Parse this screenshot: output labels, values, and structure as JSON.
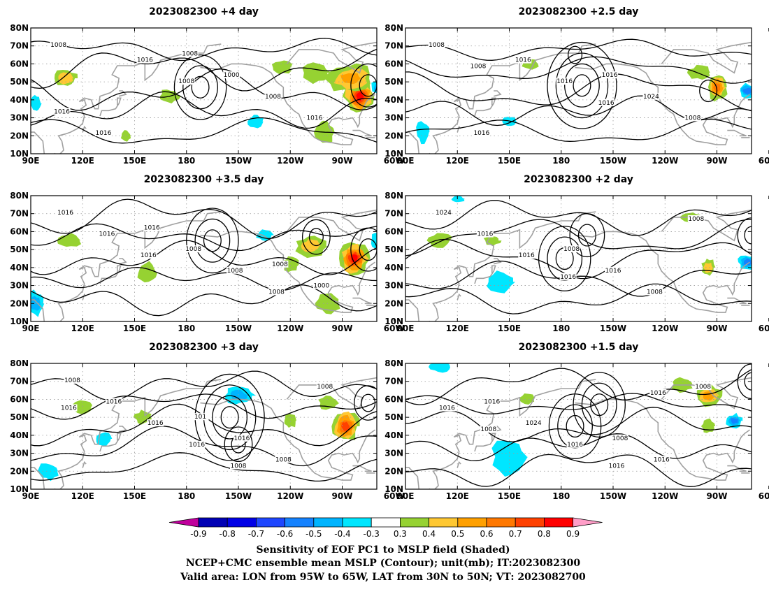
{
  "chart_data": {
    "type": "map",
    "panels": [
      {
        "title": "2023082300  +4 day",
        "contour_labels": [
          "1008",
          "1008",
          "1016",
          "1016",
          "1008",
          "1016",
          "1000",
          "1016",
          "1008"
        ],
        "highs": [
          [
            -172,
            47,
            [
              0.5,
              1,
              1.5
            ]
          ],
          [
            -75,
            48,
            [
              0.5,
              1
            ]
          ]
        ],
        "lows": [
          [
            -60,
            70,
            [
              0.4,
              0.8
            ]
          ]
        ],
        "pos": [
          [
            -80,
            42,
            9,
            10,
            0.92
          ],
          [
            -85,
            52,
            14,
            8,
            0.55
          ],
          [
            -105,
            55,
            8,
            6,
            0.38
          ],
          [
            110,
            52,
            7,
            5,
            0.5
          ],
          [
            -100,
            22,
            6,
            6,
            0.35
          ],
          [
            170,
            42,
            6,
            4,
            0.35
          ],
          [
            145,
            20,
            3,
            3,
            0.35
          ],
          [
            -55,
            72,
            6,
            6,
            0.4
          ],
          [
            -125,
            58,
            6,
            4,
            0.35
          ]
        ],
        "neg": [
          [
            -68,
            47,
            5,
            5,
            -0.6
          ],
          [
            93,
            38,
            3,
            5,
            -0.35
          ],
          [
            -140,
            28,
            5,
            4,
            -0.35
          ]
        ]
      },
      {
        "title": "2023082300  +2.5 day",
        "contour_labels": [
          "1008",
          "1016",
          "1008",
          "1016",
          "1008",
          "1016",
          "1024",
          "1016",
          "1016"
        ],
        "highs": [
          [
            -168,
            48,
            [
              0.5,
              1,
              1.5,
              2
            ]
          ],
          [
            -95,
            45,
            [
              0.5
            ]
          ]
        ],
        "lows": [
          [
            -172,
            65,
            [
              0.4
            ]
          ]
        ],
        "pos": [
          [
            -90,
            47,
            6,
            8,
            0.7
          ],
          [
            -100,
            55,
            7,
            4,
            0.35
          ],
          [
            162,
            60,
            5,
            3,
            0.35
          ],
          [
            -62,
            30,
            4,
            4,
            0.35
          ]
        ],
        "neg": [
          [
            -72,
            45,
            6,
            4,
            -0.6
          ],
          [
            100,
            22,
            4,
            6,
            -0.35
          ],
          [
            -55,
            75,
            5,
            5,
            -0.35
          ],
          [
            150,
            28,
            5,
            3,
            -0.35
          ]
        ]
      },
      {
        "title": "2023082300  +3.5 day",
        "contour_labels": [
          "1016",
          "1008",
          "1016",
          "1008",
          "1016",
          "1008",
          "1000",
          "1016",
          "1008"
        ],
        "highs": [
          [
            -165,
            55,
            [
              0.5,
              1,
              1.5
            ]
          ],
          [
            -75,
            50,
            [
              0.5,
              1
            ]
          ]
        ],
        "lows": [
          [
            -105,
            57,
            [
              0.4,
              0.8
            ]
          ]
        ],
        "pos": [
          [
            -83,
            45,
            9,
            9,
            0.9
          ],
          [
            -108,
            52,
            9,
            6,
            0.5
          ],
          [
            -98,
            20,
            7,
            6,
            0.35
          ],
          [
            -55,
            50,
            5,
            5,
            0.35
          ],
          [
            112,
            55,
            7,
            4,
            0.35
          ],
          [
            157,
            37,
            6,
            6,
            0.35
          ],
          [
            -120,
            42,
            5,
            4,
            0.35
          ]
        ],
        "neg": [
          [
            93,
            20,
            5,
            7,
            -0.5
          ],
          [
            -70,
            55,
            4,
            4,
            -0.35
          ],
          [
            -135,
            58,
            5,
            3,
            -0.35
          ]
        ]
      },
      {
        "title": "2023082300  +2 day",
        "contour_labels": [
          "1016",
          "1008",
          "1016",
          "1008",
          "1016",
          "1016",
          "1024",
          "1008"
        ],
        "highs": [
          [
            -178,
            45,
            [
              0.5,
              1,
              1.5
            ]
          ],
          [
            -165,
            58,
            [
              0.5,
              1
            ]
          ]
        ],
        "lows": [
          [
            -70,
            58,
            [
              0.4,
              0.8
            ]
          ]
        ],
        "pos": [
          [
            -95,
            40,
            4,
            5,
            0.45
          ],
          [
            110,
            55,
            7,
            4,
            0.35
          ],
          [
            -105,
            68,
            6,
            3,
            0.35
          ],
          [
            140,
            55,
            5,
            3,
            0.35
          ]
        ],
        "neg": [
          [
            -72,
            43,
            6,
            4,
            -0.6
          ],
          [
            145,
            32,
            9,
            6,
            -0.35
          ],
          [
            120,
            78,
            4,
            2,
            -0.35
          ]
        ]
      },
      {
        "title": "2023082300  +3 day",
        "contour_labels": [
          "1008",
          "1016",
          "1016",
          "1008",
          "1016",
          "1008",
          "1016",
          "1016",
          "1008",
          "101"
        ],
        "highs": [
          [
            -155,
            50,
            [
              0.5,
              1,
              1.5,
              2
            ]
          ],
          [
            -150,
            35,
            [
              0.4,
              0.8
            ]
          ]
        ],
        "lows": [
          [
            -75,
            58,
            [
              0.4,
              0.8
            ]
          ]
        ],
        "pos": [
          [
            -88,
            45,
            8,
            9,
            0.8
          ],
          [
            -98,
            58,
            6,
            4,
            0.35
          ],
          [
            -55,
            60,
            5,
            4,
            0.45
          ],
          [
            120,
            55,
            6,
            4,
            0.4
          ],
          [
            155,
            50,
            5,
            4,
            0.35
          ],
          [
            -120,
            48,
            4,
            4,
            0.35
          ]
        ],
        "neg": [
          [
            -150,
            62,
            9,
            5,
            -0.45
          ],
          [
            100,
            20,
            6,
            5,
            -0.35
          ],
          [
            132,
            38,
            5,
            4,
            -0.35
          ]
        ]
      },
      {
        "title": "2023082300  +1.5 day",
        "contour_labels": [
          "1016",
          "1008",
          "1016",
          "1016",
          "1016",
          "1008",
          "1024",
          "1016",
          "1016",
          "1008"
        ],
        "highs": [
          [
            -172,
            45,
            [
              0.5,
              1,
              1.5
            ]
          ],
          [
            -158,
            57,
            [
              0.5,
              1,
              1.5
            ]
          ]
        ],
        "lows": [
          [
            -70,
            70,
            [
              0.4,
              0.8
            ]
          ]
        ],
        "pos": [
          [
            -95,
            62,
            8,
            6,
            0.6
          ],
          [
            -110,
            68,
            6,
            4,
            0.35
          ],
          [
            160,
            60,
            5,
            3,
            0.35
          ],
          [
            -95,
            45,
            4,
            4,
            0.35
          ]
        ],
        "neg": [
          [
            -80,
            48,
            5,
            4,
            -0.6
          ],
          [
            150,
            28,
            10,
            10,
            -0.35
          ],
          [
            110,
            78,
            6,
            3,
            -0.35
          ]
        ]
      }
    ],
    "x_tick_labels": [
      "90E",
      "120E",
      "150E",
      "180",
      "150W",
      "120W",
      "90W",
      "60W"
    ],
    "y_tick_labels": [
      "10N",
      "20N",
      "30N",
      "40N",
      "50N",
      "60N",
      "70N",
      "80N"
    ],
    "xlim": [
      90,
      290
    ],
    "ylim": [
      10,
      80
    ],
    "colorbar": {
      "labels": [
        "-0.9",
        "-0.8",
        "-0.7",
        "-0.6",
        "-0.5",
        "-0.4",
        "-0.3",
        "0.3",
        "0.4",
        "0.5",
        "0.6",
        "0.7",
        "0.8",
        "0.9"
      ],
      "colors": [
        "#c0009c",
        "#0000b4",
        "#0000e6",
        "#1e46ff",
        "#1482ff",
        "#00b4ff",
        "#00e6ff",
        "#ffffff",
        "#96d232",
        "#ffc832",
        "#ffa000",
        "#ff7800",
        "#ff4100",
        "#ff0000",
        "#ff9ec8"
      ]
    },
    "captions": [
      "Sensitivity of EOF PC1 to MSLP field (Shaded)",
      "NCEP+CMC ensemble mean MSLP (Contour); unit(mb); IT:2023082300",
      "Valid area: LON from 95W to 65W, LAT from 30N to 50N; VT: 2023082700"
    ],
    "colors": {
      "contour": "#000000",
      "coast": "#a0a0a0",
      "grid": "#9a9a9a"
    }
  }
}
